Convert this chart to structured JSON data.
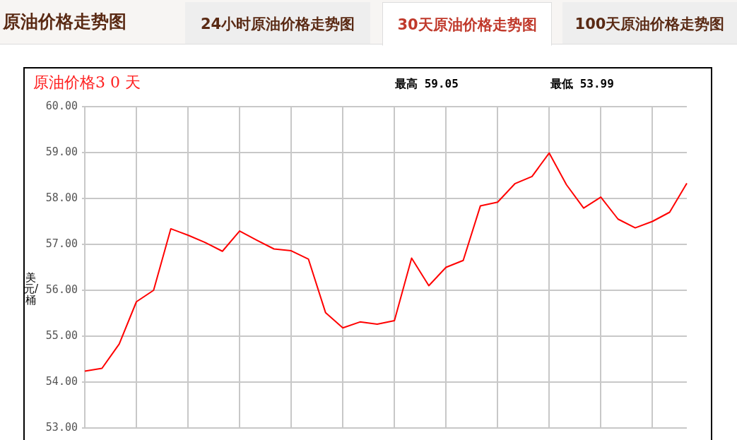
{
  "chart_data": {
    "type": "line",
    "title": "原油价格3 0 天",
    "ylabel": "美元/桶",
    "annotations": [
      "原油价格走势图",
      "24小时原油价格走势图",
      "30天原油价格走势图",
      "100天原油价格走势图",
      "最高 59.05",
      "最低 53.99"
    ],
    "categories": [
      null,
      null,
      null,
      null,
      null,
      null,
      null,
      null,
      null,
      null,
      null,
      null,
      null,
      null,
      null,
      null,
      null,
      null,
      null,
      null,
      null,
      null,
      null,
      null,
      null,
      null,
      null,
      null,
      null,
      null,
      null,
      null,
      null,
      null,
      null,
      null
    ],
    "series": [
      {
        "color": "#ff0000",
        "values": [
          54.24,
          54.3,
          54.83,
          55.75,
          56.0,
          57.34,
          57.2,
          57.04,
          56.85,
          57.29,
          57.09,
          56.9,
          56.86,
          56.68,
          55.51,
          55.18,
          55.31,
          55.26,
          55.34,
          56.7,
          56.1,
          56.5,
          56.65,
          57.84,
          57.92,
          58.32,
          58.48,
          58.99,
          58.3,
          57.79,
          58.03,
          57.55,
          57.36,
          57.5,
          57.7,
          58.33
        ]
      }
    ],
    "ylim": [
      53,
      60
    ],
    "yticks": [
      {
        "value": 53,
        "label": "53.00"
      },
      {
        "value": 54,
        "label": "54.00"
      },
      {
        "value": 55,
        "label": "55.00"
      },
      {
        "value": 56,
        "label": "56.00"
      },
      {
        "value": 57,
        "label": "57.00"
      },
      {
        "value": 58,
        "label": "58.00"
      },
      {
        "value": 59,
        "label": "59.00"
      },
      {
        "value": 60,
        "label": "60.00"
      }
    ],
    "grid": true,
    "legend": false,
    "marker": "none",
    "line_style": "solid",
    "tick_labels": "y"
  }
}
